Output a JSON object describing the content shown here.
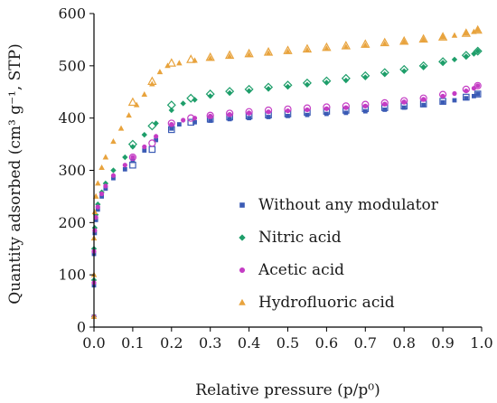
{
  "chart_data": {
    "type": "scatter",
    "title": "",
    "xlabel": "Relative pressure (p/p⁰)",
    "ylabel": "Quantity adsorbed (cm³ g⁻¹, STP)",
    "xlim": [
      0,
      1.0
    ],
    "ylim": [
      0,
      600
    ],
    "xticks": [
      "0.0",
      "0.1",
      "0.2",
      "0.3",
      "0.4",
      "0.5",
      "0.6",
      "0.7",
      "0.8",
      "0.9",
      "1.0"
    ],
    "yticks": [
      "0",
      "100",
      "200",
      "300",
      "400",
      "500",
      "600"
    ],
    "grid": false,
    "legend_position": "bottom-right",
    "series": [
      {
        "name": "Without any modulator",
        "marker": "square",
        "color": "#3b5bb5",
        "adsorption": [
          [
            0.0,
            20
          ],
          [
            0.0,
            80
          ],
          [
            0.0,
            140
          ],
          [
            0.002,
            180
          ],
          [
            0.005,
            205
          ],
          [
            0.01,
            225
          ],
          [
            0.02,
            250
          ],
          [
            0.03,
            265
          ],
          [
            0.05,
            285
          ],
          [
            0.08,
            302
          ],
          [
            0.1,
            318
          ],
          [
            0.13,
            338
          ],
          [
            0.16,
            358
          ],
          [
            0.2,
            380
          ],
          [
            0.22,
            388
          ],
          [
            0.26,
            392
          ],
          [
            0.3,
            395
          ],
          [
            0.35,
            398
          ],
          [
            0.4,
            400
          ],
          [
            0.45,
            402
          ],
          [
            0.5,
            404
          ],
          [
            0.55,
            406
          ],
          [
            0.6,
            408
          ],
          [
            0.65,
            410
          ],
          [
            0.7,
            413
          ],
          [
            0.75,
            416
          ],
          [
            0.8,
            420
          ],
          [
            0.85,
            425
          ],
          [
            0.9,
            430
          ],
          [
            0.93,
            434
          ],
          [
            0.96,
            438
          ],
          [
            0.98,
            442
          ],
          [
            0.99,
            446
          ]
        ],
        "desorption": [
          [
            0.99,
            446
          ],
          [
            0.96,
            440
          ],
          [
            0.9,
            432
          ],
          [
            0.85,
            427
          ],
          [
            0.8,
            423
          ],
          [
            0.75,
            420
          ],
          [
            0.7,
            418
          ],
          [
            0.65,
            415
          ],
          [
            0.6,
            413
          ],
          [
            0.55,
            411
          ],
          [
            0.5,
            408
          ],
          [
            0.45,
            406
          ],
          [
            0.4,
            404
          ],
          [
            0.35,
            402
          ],
          [
            0.3,
            398
          ],
          [
            0.25,
            392
          ],
          [
            0.2,
            378
          ],
          [
            0.15,
            340
          ],
          [
            0.1,
            310
          ]
        ]
      },
      {
        "name": "Nitric acid",
        "marker": "diamond",
        "color": "#1e9e6a",
        "adsorption": [
          [
            0.0,
            20
          ],
          [
            0.0,
            90
          ],
          [
            0.0,
            150
          ],
          [
            0.002,
            190
          ],
          [
            0.005,
            215
          ],
          [
            0.01,
            235
          ],
          [
            0.02,
            258
          ],
          [
            0.03,
            275
          ],
          [
            0.05,
            300
          ],
          [
            0.08,
            325
          ],
          [
            0.1,
            345
          ],
          [
            0.13,
            368
          ],
          [
            0.16,
            390
          ],
          [
            0.2,
            415
          ],
          [
            0.23,
            428
          ],
          [
            0.26,
            435
          ],
          [
            0.3,
            442
          ],
          [
            0.35,
            448
          ],
          [
            0.4,
            452
          ],
          [
            0.45,
            456
          ],
          [
            0.5,
            460
          ],
          [
            0.55,
            464
          ],
          [
            0.6,
            468
          ],
          [
            0.65,
            472
          ],
          [
            0.7,
            478
          ],
          [
            0.75,
            484
          ],
          [
            0.8,
            490
          ],
          [
            0.85,
            498
          ],
          [
            0.9,
            506
          ],
          [
            0.93,
            512
          ],
          [
            0.96,
            518
          ],
          [
            0.98,
            523
          ],
          [
            0.99,
            528
          ]
        ],
        "desorption": [
          [
            0.99,
            528
          ],
          [
            0.96,
            520
          ],
          [
            0.9,
            508
          ],
          [
            0.85,
            500
          ],
          [
            0.8,
            493
          ],
          [
            0.75,
            487
          ],
          [
            0.7,
            481
          ],
          [
            0.65,
            476
          ],
          [
            0.6,
            471
          ],
          [
            0.55,
            467
          ],
          [
            0.5,
            463
          ],
          [
            0.45,
            459
          ],
          [
            0.4,
            455
          ],
          [
            0.35,
            451
          ],
          [
            0.3,
            446
          ],
          [
            0.25,
            438
          ],
          [
            0.2,
            425
          ],
          [
            0.15,
            385
          ],
          [
            0.1,
            350
          ]
        ]
      },
      {
        "name": "Acetic acid",
        "marker": "circle",
        "color": "#c43cc4",
        "adsorption": [
          [
            0.0,
            20
          ],
          [
            0.0,
            85
          ],
          [
            0.0,
            145
          ],
          [
            0.002,
            185
          ],
          [
            0.005,
            210
          ],
          [
            0.01,
            230
          ],
          [
            0.02,
            255
          ],
          [
            0.03,
            270
          ],
          [
            0.05,
            290
          ],
          [
            0.08,
            310
          ],
          [
            0.1,
            325
          ],
          [
            0.13,
            345
          ],
          [
            0.16,
            365
          ],
          [
            0.2,
            388
          ],
          [
            0.23,
            396
          ],
          [
            0.26,
            400
          ],
          [
            0.3,
            404
          ],
          [
            0.35,
            407
          ],
          [
            0.4,
            410
          ],
          [
            0.45,
            412
          ],
          [
            0.5,
            414
          ],
          [
            0.55,
            416
          ],
          [
            0.6,
            418
          ],
          [
            0.65,
            420
          ],
          [
            0.7,
            423
          ],
          [
            0.75,
            427
          ],
          [
            0.8,
            431
          ],
          [
            0.85,
            436
          ],
          [
            0.9,
            442
          ],
          [
            0.93,
            447
          ],
          [
            0.96,
            452
          ],
          [
            0.98,
            457
          ],
          [
            0.99,
            462
          ]
        ],
        "desorption": [
          [
            0.99,
            462
          ],
          [
            0.96,
            455
          ],
          [
            0.9,
            445
          ],
          [
            0.85,
            438
          ],
          [
            0.8,
            433
          ],
          [
            0.75,
            429
          ],
          [
            0.7,
            426
          ],
          [
            0.65,
            423
          ],
          [
            0.6,
            421
          ],
          [
            0.55,
            419
          ],
          [
            0.5,
            417
          ],
          [
            0.45,
            415
          ],
          [
            0.4,
            412
          ],
          [
            0.35,
            409
          ],
          [
            0.3,
            405
          ],
          [
            0.25,
            400
          ],
          [
            0.2,
            390
          ],
          [
            0.15,
            352
          ],
          [
            0.1,
            325
          ]
        ]
      },
      {
        "name": "Hydrofluoric acid",
        "marker": "triangle",
        "color": "#e8a33d",
        "adsorption": [
          [
            0.0,
            20
          ],
          [
            0.0,
            100
          ],
          [
            0.0,
            170
          ],
          [
            0.002,
            220
          ],
          [
            0.005,
            250
          ],
          [
            0.01,
            275
          ],
          [
            0.02,
            305
          ],
          [
            0.03,
            325
          ],
          [
            0.05,
            355
          ],
          [
            0.07,
            380
          ],
          [
            0.09,
            405
          ],
          [
            0.11,
            425
          ],
          [
            0.13,
            445
          ],
          [
            0.15,
            465
          ],
          [
            0.17,
            488
          ],
          [
            0.19,
            500
          ],
          [
            0.22,
            505
          ],
          [
            0.26,
            510
          ],
          [
            0.3,
            514
          ],
          [
            0.35,
            518
          ],
          [
            0.4,
            521
          ],
          [
            0.45,
            524
          ],
          [
            0.5,
            527
          ],
          [
            0.55,
            530
          ],
          [
            0.6,
            533
          ],
          [
            0.65,
            536
          ],
          [
            0.7,
            539
          ],
          [
            0.75,
            542
          ],
          [
            0.8,
            546
          ],
          [
            0.85,
            550
          ],
          [
            0.9,
            555
          ],
          [
            0.93,
            558
          ],
          [
            0.96,
            562
          ],
          [
            0.98,
            565
          ],
          [
            0.99,
            568
          ]
        ],
        "desorption": [
          [
            0.99,
            568
          ],
          [
            0.96,
            562
          ],
          [
            0.9,
            555
          ],
          [
            0.85,
            551
          ],
          [
            0.8,
            547
          ],
          [
            0.75,
            544
          ],
          [
            0.7,
            541
          ],
          [
            0.65,
            538
          ],
          [
            0.6,
            535
          ],
          [
            0.55,
            532
          ],
          [
            0.5,
            529
          ],
          [
            0.45,
            526
          ],
          [
            0.4,
            523
          ],
          [
            0.35,
            520
          ],
          [
            0.3,
            516
          ],
          [
            0.25,
            512
          ],
          [
            0.2,
            505
          ],
          [
            0.15,
            470
          ],
          [
            0.1,
            430
          ]
        ]
      }
    ]
  }
}
